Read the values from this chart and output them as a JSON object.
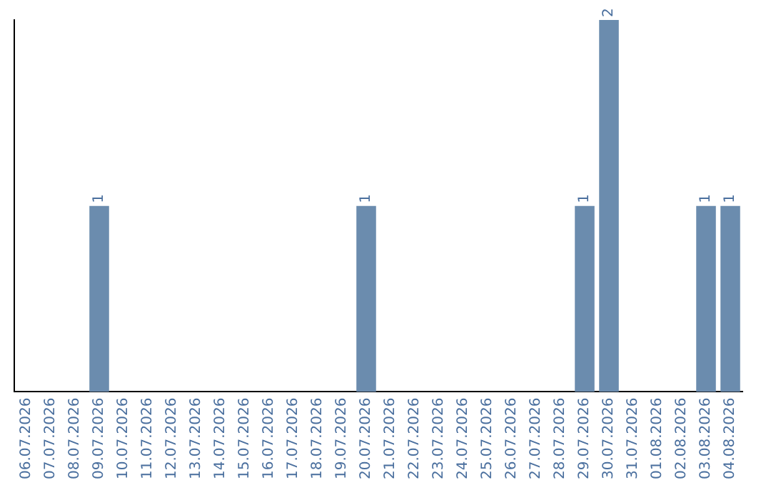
{
  "chart_data": {
    "type": "bar",
    "categories": [
      "06.07.2026",
      "07.07.2026",
      "08.07.2026",
      "09.07.2026",
      "10.07.2026",
      "11.07.2026",
      "12.07.2026",
      "13.07.2026",
      "14.07.2026",
      "15.07.2026",
      "16.07.2026",
      "17.07.2026",
      "18.07.2026",
      "19.07.2026",
      "20.07.2026",
      "21.07.2026",
      "22.07.2026",
      "23.07.2026",
      "24.07.2026",
      "25.07.2026",
      "26.07.2026",
      "27.07.2026",
      "28.07.2026",
      "29.07.2026",
      "30.07.2026",
      "31.07.2026",
      "01.08.2026",
      "02.08.2026",
      "03.08.2026",
      "04.08.2026"
    ],
    "values": [
      0,
      0,
      0,
      1,
      0,
      0,
      0,
      0,
      0,
      0,
      0,
      0,
      0,
      0,
      1,
      0,
      0,
      0,
      0,
      0,
      0,
      0,
      0,
      1,
      2,
      0,
      0,
      0,
      1,
      1
    ],
    "value_labels": [
      null,
      null,
      null,
      "1",
      null,
      null,
      null,
      null,
      null,
      null,
      null,
      null,
      null,
      null,
      "1",
      null,
      null,
      null,
      null,
      null,
      null,
      null,
      null,
      "1",
      "2",
      null,
      null,
      null,
      "1",
      "1"
    ],
    "color": "#6b8cae",
    "grid": false,
    "legend": false,
    "tick_labels": "x"
  }
}
